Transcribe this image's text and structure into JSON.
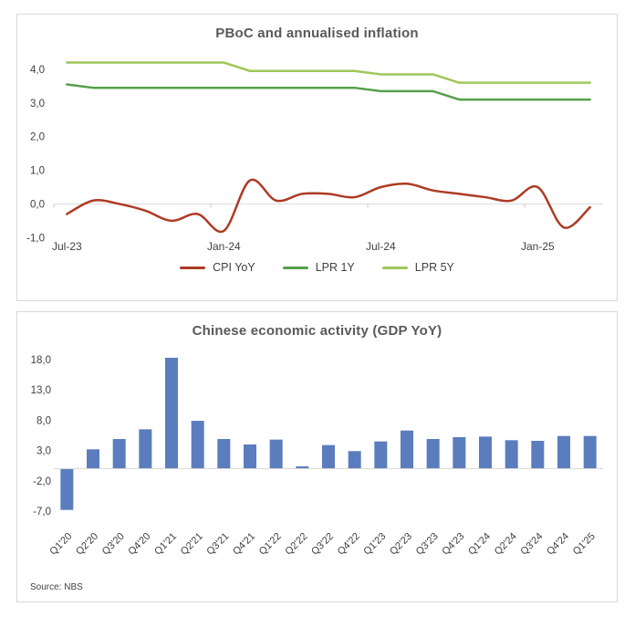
{
  "window": {
    "background": "#ffffff",
    "panel_border": "#d9d9d9",
    "title_color": "#595959",
    "axis_text_color": "#3f3f3f",
    "axis_line_color": "#d9d9d9"
  },
  "chart_data": [
    {
      "id": "inflation",
      "type": "line",
      "title": "PBoC and annualised inflation",
      "x": [
        "Jul-23",
        "Aug-23",
        "Sep-23",
        "Oct-23",
        "Nov-23",
        "Dec-23",
        "Jan-24",
        "Feb-24",
        "Mar-24",
        "Apr-24",
        "May-24",
        "Jun-24",
        "Jul-24",
        "Aug-24",
        "Sep-24",
        "Oct-24",
        "Nov-24",
        "Dec-24",
        "Jan-25",
        "Feb-25",
        "Mar-25"
      ],
      "x_ticks": [
        {
          "index": 0,
          "label": "Jul-23"
        },
        {
          "index": 6,
          "label": "Jan-24"
        },
        {
          "index": 12,
          "label": "Jul-24"
        },
        {
          "index": 18,
          "label": "Jan-25"
        }
      ],
      "y_ticks": [
        {
          "value": 4,
          "label": "4,0"
        },
        {
          "value": 3,
          "label": "3,0"
        },
        {
          "value": 2,
          "label": "2,0"
        },
        {
          "value": 1,
          "label": "1,0"
        },
        {
          "value": 0,
          "label": "0,0"
        },
        {
          "value": -1,
          "label": "-1,0"
        }
      ],
      "ylim": [
        -1.1,
        4.35
      ],
      "grid": "zero-line-only",
      "legend_position": "bottom",
      "series": [
        {
          "name": "CPI YoY",
          "color": "#ae3a23",
          "smooth": true,
          "values": [
            -0.3,
            0.1,
            0.0,
            -0.2,
            -0.5,
            -0.3,
            -0.8,
            0.7,
            0.1,
            0.3,
            0.3,
            0.2,
            0.5,
            0.6,
            0.4,
            0.3,
            0.2,
            0.1,
            0.5,
            -0.7,
            -0.1
          ]
        },
        {
          "name": "LPR 1Y",
          "color": "#55a04b",
          "smooth": false,
          "values": [
            3.55,
            3.45,
            3.45,
            3.45,
            3.45,
            3.45,
            3.45,
            3.45,
            3.45,
            3.45,
            3.45,
            3.45,
            3.35,
            3.35,
            3.35,
            3.1,
            3.1,
            3.1,
            3.1,
            3.1,
            3.1
          ]
        },
        {
          "name": "LPR 5Y",
          "color": "#a0c65a",
          "smooth": false,
          "values": [
            4.2,
            4.2,
            4.2,
            4.2,
            4.2,
            4.2,
            4.2,
            3.95,
            3.95,
            3.95,
            3.95,
            3.95,
            3.85,
            3.85,
            3.85,
            3.6,
            3.6,
            3.6,
            3.6,
            3.6,
            3.6
          ]
        }
      ]
    },
    {
      "id": "gdp",
      "type": "bar",
      "title": "Chinese economic activity (GDP YoY)",
      "categories": [
        "Q1'20",
        "Q2'20",
        "Q3'20",
        "Q4'20",
        "Q1'21",
        "Q2'21",
        "Q3'21",
        "Q4'21",
        "Q1'22",
        "Q2'22",
        "Q3'22",
        "Q4'22",
        "Q1'23",
        "Q2'23",
        "Q3'23",
        "Q4'23",
        "Q1'24",
        "Q2'24",
        "Q3'24",
        "Q4'24",
        "Q1'25"
      ],
      "values": [
        -6.8,
        3.2,
        4.9,
        6.5,
        18.3,
        7.9,
        4.9,
        4.0,
        4.8,
        0.4,
        3.9,
        2.9,
        4.5,
        6.3,
        4.9,
        5.2,
        5.3,
        4.7,
        4.6,
        5.4,
        5.4
      ],
      "bar_color": "#5b7dbd",
      "y_ticks": [
        {
          "value": 18,
          "label": "18,0"
        },
        {
          "value": 13,
          "label": "13,0"
        },
        {
          "value": 8,
          "label": "8,0"
        },
        {
          "value": 3,
          "label": "3,0"
        },
        {
          "value": -2,
          "label": "-2,0"
        },
        {
          "value": -7,
          "label": "-7,0"
        }
      ],
      "ylim": [
        -8.5,
        19.5
      ],
      "grid": "zero-line-only",
      "source": "Source: NBS"
    }
  ]
}
